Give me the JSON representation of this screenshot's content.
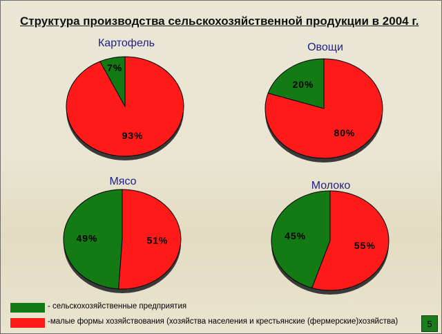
{
  "title": "Структура производства сельскохозяйственной продукции в 2004 г.",
  "colors": {
    "corporate": "#147a14",
    "small_farms": "#ff1a1a"
  },
  "chart_data": [
    {
      "type": "pie",
      "title": "Картофель",
      "labels": [
        "7%",
        "93%"
      ],
      "values": [
        7,
        93
      ]
    },
    {
      "type": "pie",
      "title": "Овощи",
      "labels": [
        "20%",
        "80%"
      ],
      "values": [
        20,
        80
      ]
    },
    {
      "type": "pie",
      "title": "Мясо",
      "labels": [
        "49%",
        "51%"
      ],
      "values": [
        49,
        51
      ]
    },
    {
      "type": "pie",
      "title": "Молоко",
      "labels": [
        "45%",
        "55%"
      ],
      "values": [
        45,
        55
      ]
    }
  ],
  "legend": [
    {
      "label": "- сельскохозяйственные предприятия"
    },
    {
      "label": "-малые формы хозяйствования (хозяйства населения и крестьянские (фермерские)хозяйства)"
    }
  ],
  "page_number": "5"
}
